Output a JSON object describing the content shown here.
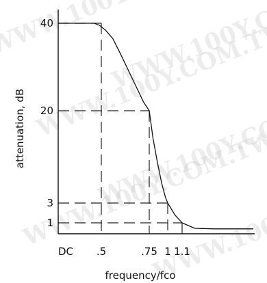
{
  "chart_data": {
    "type": "line",
    "title": "",
    "xlabel": "frequency/fco",
    "ylabel": "attenuation, dB",
    "x_ticks": [
      {
        "value": 0,
        "label": "DC"
      },
      {
        "value": 0.5,
        "label": ".5"
      },
      {
        "value": 0.75,
        "label": ".75"
      },
      {
        "value": 1.0,
        "label": "1"
      },
      {
        "value": 1.1,
        "label": "1.1"
      }
    ],
    "y_ticks": [
      {
        "value": 1,
        "label": "1"
      },
      {
        "value": 3,
        "label": "3"
      },
      {
        "value": 20,
        "label": "20"
      },
      {
        "value": 40,
        "label": "40"
      }
    ],
    "xlim": [
      0,
      1.55
    ],
    "ylim": [
      0,
      45
    ],
    "grid": false,
    "series": [
      {
        "x": [
          0,
          0.3,
          0.42,
          0.48,
          0.52,
          0.56,
          0.6,
          0.66,
          0.72,
          0.75,
          0.8,
          0.86,
          0.92,
          0.97,
          1.0,
          1.05,
          1.1,
          1.18,
          1.3,
          1.55
        ],
        "y": [
          40,
          40,
          40,
          39.5,
          38.5,
          36.5,
          33,
          27.5,
          22,
          20,
          15,
          10.5,
          6.5,
          4,
          3,
          1.8,
          1,
          0.5,
          0.45,
          0.45
        ]
      }
    ],
    "reference_lines": [
      {
        "x": 0.5,
        "y": 40
      },
      {
        "x": 0.75,
        "y": 20
      },
      {
        "x": 1.0,
        "y": 3
      },
      {
        "x": 1.1,
        "y": 1
      }
    ]
  },
  "watermark": {
    "text": "WWW.100Y.COM.TW"
  }
}
